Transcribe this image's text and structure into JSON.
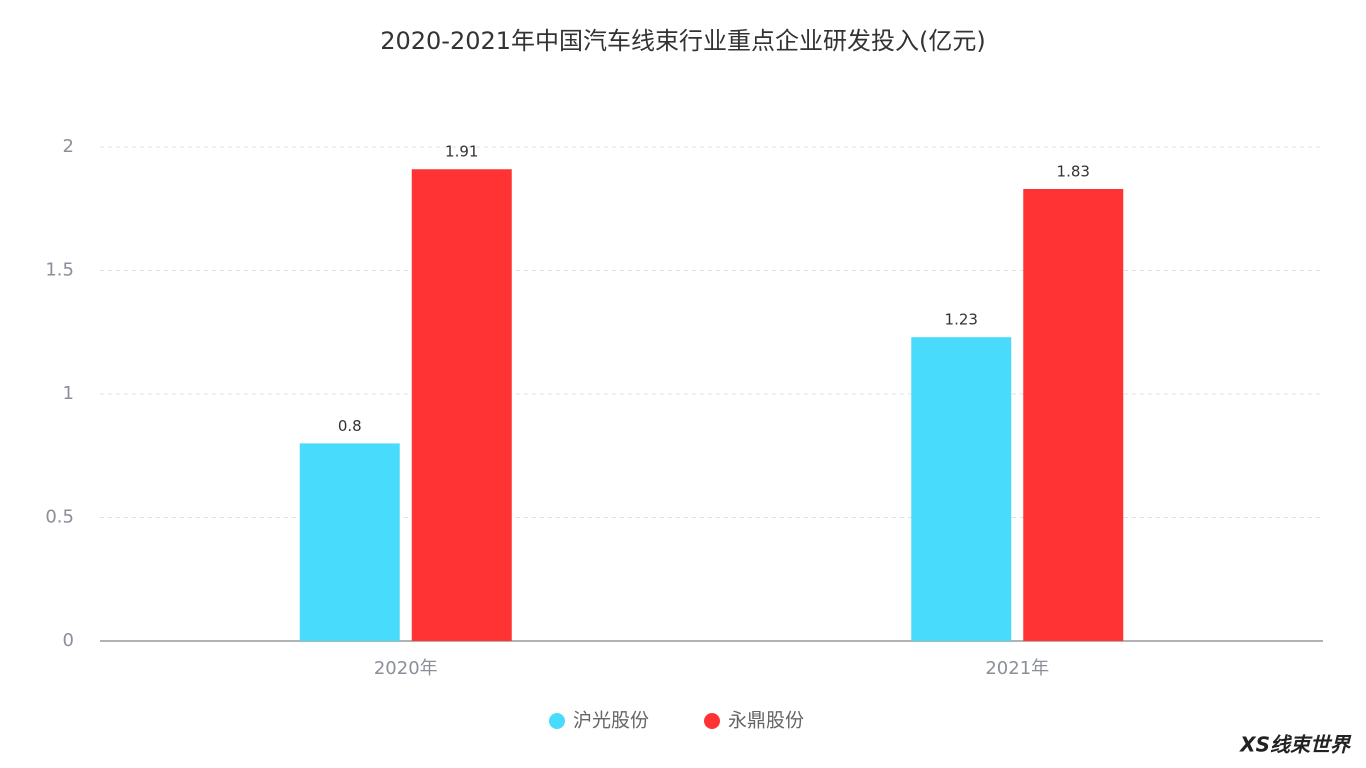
{
  "chart_data": {
    "type": "bar",
    "title": "2020-2021年中国汽车线束行业重点企业研发投入(亿元)",
    "categories": [
      "2020年",
      "2021年"
    ],
    "series": [
      {
        "name": "沪光股份",
        "color": "#48dbfb",
        "values": [
          0.8,
          1.23
        ]
      },
      {
        "name": "永鼎股份",
        "color": "#ff3333",
        "values": [
          1.91,
          1.83
        ]
      }
    ],
    "ylim": [
      0,
      2
    ],
    "yticks": [
      0,
      0.5,
      1,
      1.5,
      2
    ],
    "grid": true,
    "legend": "bottom",
    "watermark": "XS线束世界"
  }
}
